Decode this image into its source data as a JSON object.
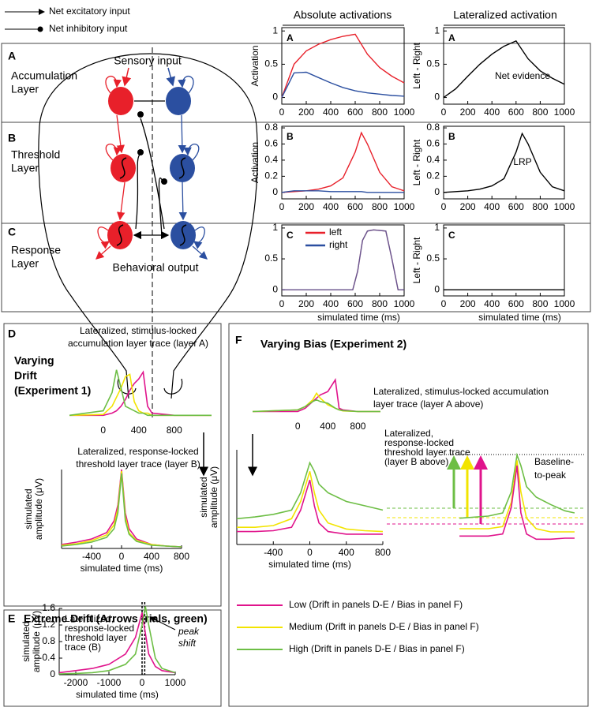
{
  "figure": {
    "legend_top": [
      "Net excitatory input",
      "Net inhibitory input"
    ],
    "column_headers": [
      "Absolute activations",
      "Lateralized activation"
    ],
    "rows": [
      {
        "letter": "A",
        "lines": [
          "Accumulation",
          "Layer"
        ]
      },
      {
        "letter": "B",
        "lines": [
          "Threshold",
          "Layer"
        ]
      },
      {
        "letter": "C",
        "lines": [
          "Response",
          "Layer"
        ]
      }
    ],
    "sensory": "Sensory input",
    "behavioral": "Behavioral output",
    "panel_d": {
      "letter": "D",
      "lines": [
        "Varying",
        "Drift",
        "(Experiment 1)"
      ]
    },
    "panel_e": {
      "letter": "E",
      "title": "Extreme Drift (Arrows trials, green)",
      "note": [
        "peak",
        "shift"
      ]
    },
    "panel_f": {
      "letter": "F",
      "title": "Varying Bias (Experiment 2)",
      "note": [
        "Baseline-",
        "to-peak"
      ]
    },
    "legend_bottom": [
      {
        "name": "Low (Drift in panels D-E / Bias in panel F)",
        "color": "#e0148c"
      },
      {
        "name": "Medium (Drift in panels D-E / Bias in panel F)",
        "color": "#f2e400"
      },
      {
        "name": "High (Drift in panels D-E / Bias in panel F)",
        "color": "#6dbe45"
      }
    ]
  },
  "chart_data": [
    {
      "type": "line",
      "frame": "box",
      "panel_label": "A",
      "ylabel": "Activation",
      "x": [
        0,
        100,
        200,
        300,
        400,
        500,
        600,
        700,
        800,
        900,
        1000
      ],
      "series": [
        {
          "color": "#e8202a",
          "values": [
            0,
            0.5,
            0.7,
            0.8,
            0.87,
            0.92,
            0.95,
            0.65,
            0.45,
            0.32,
            0.22
          ]
        },
        {
          "color": "#2b4fa0",
          "values": [
            0,
            0.37,
            0.38,
            0.3,
            0.22,
            0.15,
            0.1,
            0.07,
            0.05,
            0.03,
            0.02
          ]
        }
      ],
      "xlim": [
        0,
        1000
      ],
      "ylim": [
        -0.1,
        1.05
      ],
      "xticks": [
        0,
        200,
        400,
        600,
        800,
        1000
      ],
      "yticks": [
        0,
        0.5,
        1
      ]
    },
    {
      "type": "line",
      "frame": "box",
      "panel_label": "A",
      "ylabel": "Left - Right",
      "annotation": "Net evidence",
      "x": [
        0,
        100,
        200,
        300,
        400,
        500,
        600,
        700,
        800,
        900,
        1000
      ],
      "series": [
        {
          "color": "#000000",
          "values": [
            0,
            0.13,
            0.32,
            0.5,
            0.65,
            0.77,
            0.85,
            0.58,
            0.4,
            0.29,
            0.2
          ]
        }
      ],
      "xlim": [
        0,
        1000
      ],
      "ylim": [
        -0.1,
        1.05
      ],
      "xticks": [
        0,
        200,
        400,
        600,
        800,
        1000
      ],
      "yticks": [
        0,
        0.5,
        1
      ]
    },
    {
      "type": "line",
      "frame": "box",
      "panel_label": "B",
      "ylabel": "Activation",
      "x": [
        0,
        100,
        200,
        300,
        400,
        500,
        600,
        650,
        700,
        800,
        900,
        1000
      ],
      "series": [
        {
          "color": "#e8202a",
          "values": [
            0,
            0.01,
            0.02,
            0.04,
            0.08,
            0.18,
            0.5,
            0.74,
            0.6,
            0.25,
            0.07,
            0.02
          ]
        },
        {
          "color": "#2b4fa0",
          "values": [
            0,
            0.02,
            0.02,
            0.02,
            0.01,
            0.01,
            0.01,
            0.01,
            0,
            0,
            0,
            0
          ]
        }
      ],
      "xlim": [
        0,
        1000
      ],
      "ylim": [
        -0.08,
        0.82
      ],
      "xticks": [
        0,
        200,
        400,
        600,
        800,
        1000
      ],
      "yticks": [
        0,
        0.2,
        0.4,
        0.6,
        0.8
      ]
    },
    {
      "type": "line",
      "frame": "box",
      "panel_label": "B",
      "ylabel": "Left - Right",
      "annotation": "LRP",
      "x": [
        0,
        100,
        200,
        300,
        400,
        500,
        600,
        650,
        700,
        800,
        900,
        1000
      ],
      "series": [
        {
          "color": "#000000",
          "values": [
            0,
            0.01,
            0.02,
            0.04,
            0.08,
            0.17,
            0.5,
            0.73,
            0.6,
            0.25,
            0.07,
            0.02
          ]
        }
      ],
      "xlim": [
        0,
        1000
      ],
      "ylim": [
        -0.08,
        0.82
      ],
      "xticks": [
        0,
        200,
        400,
        600,
        800,
        1000
      ],
      "yticks": [
        0,
        0.2,
        0.4,
        0.6,
        0.8
      ]
    },
    {
      "type": "line",
      "frame": "box",
      "panel_label": "C",
      "xlabel": "simulated time (ms)",
      "legend": true,
      "x": [
        0,
        580,
        620,
        660,
        700,
        750,
        850,
        900,
        950,
        1000
      ],
      "series": [
        {
          "name": "left",
          "color": "#e8202a",
          "values": [
            0,
            0,
            0.3,
            0.8,
            0.95,
            0.97,
            0.95,
            0.5,
            0,
            0
          ]
        },
        {
          "name": "right",
          "color": "#2b4fa0",
          "values": [
            0,
            0,
            0.3,
            0.8,
            0.95,
            0.97,
            0.95,
            0.5,
            0,
            0
          ]
        }
      ],
      "xlim": [
        0,
        1000
      ],
      "ylim": [
        -0.1,
        1.05
      ],
      "xticks": [
        0,
        200,
        400,
        600,
        800,
        1000
      ],
      "yticks": [
        0,
        0.5,
        1
      ]
    },
    {
      "type": "line",
      "frame": "box",
      "panel_label": "C",
      "ylabel": "Left - Right",
      "xlabel": "simulated time (ms)",
      "x": [
        0,
        1000
      ],
      "series": [
        {
          "color": "#000000",
          "values": [
            0,
            0
          ]
        }
      ],
      "xlim": [
        0,
        1000
      ],
      "ylim": [
        -0.1,
        1.05
      ],
      "xticks": [
        0,
        200,
        400,
        600,
        800,
        1000
      ],
      "yticks": [
        0,
        0.5,
        1
      ]
    },
    {
      "type": "line",
      "frame": "none",
      "title": [
        "Lateralized, stimulus-locked",
        "accumulation layer trace (layer A)"
      ],
      "x": [
        -380,
        0,
        100,
        150,
        200,
        250,
        300,
        350,
        400,
        450,
        500,
        550,
        800,
        1220
      ],
      "series": [
        {
          "color": "#e0148c",
          "values": [
            0,
            0,
            0.05,
            0.1,
            0.2,
            0.35,
            0.55,
            0.7,
            0.8,
            0.95,
            0.2,
            0.05,
            0,
            0
          ]
        },
        {
          "color": "#f2e400",
          "values": [
            0,
            0.02,
            0.2,
            0.4,
            0.6,
            0.85,
            0.9,
            0.3,
            0.1,
            0.05,
            0.05,
            0,
            0,
            0
          ]
        },
        {
          "color": "#6dbe45",
          "values": [
            0,
            0.1,
            0.5,
            1.0,
            0.6,
            0.2,
            0.15,
            0.1,
            0.05,
            0.05,
            0,
            0,
            0,
            0
          ]
        }
      ],
      "xlim": [
        -380,
        1220
      ],
      "ylim": [
        -0.15,
        1.15
      ],
      "xticks": [
        0,
        400,
        800
      ]
    },
    {
      "type": "line",
      "frame": "lines",
      "title": [
        "Lateralized, response-locked",
        "threshold layer trace (layer B)"
      ],
      "ylabel": [
        "simulated",
        "amplitude (μV)"
      ],
      "xlabel": "simulated time (ms)",
      "x": [
        -800,
        -600,
        -400,
        -200,
        -100,
        -50,
        0,
        50,
        100,
        200,
        400,
        600,
        800
      ],
      "series": [
        {
          "color": "#e0148c",
          "values": [
            0.05,
            0.08,
            0.12,
            0.2,
            0.35,
            0.55,
            1.0,
            0.45,
            0.25,
            0.12,
            0.05,
            0.03,
            0.02
          ]
        },
        {
          "color": "#f2e400",
          "values": [
            0.04,
            0.06,
            0.1,
            0.17,
            0.3,
            0.5,
            0.98,
            0.4,
            0.2,
            0.1,
            0.05,
            0.03,
            0.02
          ]
        },
        {
          "color": "#6dbe45",
          "values": [
            0.03,
            0.05,
            0.08,
            0.14,
            0.25,
            0.45,
            0.95,
            0.35,
            0.18,
            0.09,
            0.04,
            0.03,
            0.02
          ]
        }
      ],
      "xlim": [
        -800,
        800
      ],
      "ylim": [
        0,
        1
      ],
      "xticks": [
        -400,
        0,
        400,
        800
      ]
    },
    {
      "type": "line",
      "frame": "lines",
      "title": [
        "Lateralized,",
        "response-locked",
        "threshold layer",
        "trace (B)"
      ],
      "ylabel": [
        "simulated",
        "amplitude (μV)"
      ],
      "xlabel": "simulated time (ms)",
      "x": [
        -2500,
        -2000,
        -1500,
        -1000,
        -500,
        -200,
        0,
        100,
        200,
        400,
        600,
        1000
      ],
      "series": [
        {
          "color": "#e0148c",
          "values": [
            0.05,
            0.1,
            0.15,
            0.25,
            0.5,
            0.9,
            1.5,
            1.0,
            0.5,
            0.2,
            0.1,
            0.05
          ]
        },
        {
          "color": "#6dbe45",
          "values": [
            0.02,
            0.03,
            0.05,
            0.1,
            0.25,
            0.5,
            1.2,
            1.65,
            1.2,
            0.4,
            0.15,
            0.05
          ]
        }
      ],
      "markers": [
        0,
        80
      ],
      "xlim": [
        -2500,
        1000
      ],
      "ylim": [
        0,
        1.6
      ],
      "xticks": [
        -2000,
        -1000,
        0,
        1000
      ],
      "yticks": [
        0,
        0.4,
        0.8,
        1.2,
        1.6
      ]
    },
    {
      "type": "line",
      "frame": "none",
      "title": [
        "Lateralized, stimulus-locked accumulation",
        "layer trace (layer A above)"
      ],
      "x": [
        -600,
        0,
        100,
        200,
        250,
        300,
        400,
        500,
        550,
        600,
        800,
        1100
      ],
      "series": [
        {
          "color": "#e0148c",
          "values": [
            0,
            0,
            0.1,
            0.3,
            0.4,
            0.5,
            0.6,
            0.95,
            0.1,
            0.05,
            0,
            0
          ]
        },
        {
          "color": "#f2e400",
          "values": [
            0,
            0.05,
            0.15,
            0.35,
            0.55,
            0.4,
            0.2,
            0.1,
            0.05,
            0.02,
            0,
            0
          ]
        },
        {
          "color": "#6dbe45",
          "values": [
            0,
            0.05,
            0.15,
            0.3,
            0.35,
            0.3,
            0.25,
            0.1,
            0.05,
            0.03,
            0,
            0
          ]
        }
      ],
      "xlim": [
        -600,
        1100
      ],
      "ylim": [
        -0.2,
        1.1
      ],
      "xticks": [
        0,
        400,
        800
      ]
    },
    {
      "type": "line",
      "frame": "lines",
      "title": [
        "Lateralized,",
        "response-locked",
        "threshold layer trace",
        "(layer B above)"
      ],
      "ylabel": [
        "simulated",
        "amplitude (μV)"
      ],
      "xlabel": "simulated time (ms)",
      "x": [
        -800,
        -600,
        -400,
        -200,
        -100,
        0,
        50,
        100,
        200,
        400,
        600,
        800
      ],
      "series": [
        {
          "color": "#6dbe45",
          "values": [
            0.2,
            0.22,
            0.25,
            0.3,
            0.5,
            0.85,
            0.75,
            0.6,
            0.5,
            0.4,
            0.35,
            0.3
          ]
        },
        {
          "color": "#f2e400",
          "values": [
            0.1,
            0.1,
            0.12,
            0.2,
            0.4,
            0.75,
            0.5,
            0.3,
            0.15,
            0.08,
            0.06,
            0.05
          ]
        },
        {
          "color": "#e0148c",
          "values": [
            0.05,
            0.05,
            0.06,
            0.1,
            0.3,
            0.65,
            0.35,
            0.15,
            0.05,
            0.02,
            0.02,
            0.02
          ]
        }
      ],
      "xlim": [
        -800,
        800
      ],
      "ylim": [
        -0.1,
        1
      ],
      "xticks": [
        -400,
        0,
        400,
        800
      ]
    },
    {
      "type": "line",
      "frame": "none",
      "x": [
        -600,
        -300,
        -150,
        -60,
        0,
        40,
        100,
        200,
        350,
        500,
        600
      ],
      "series": [
        {
          "color": "#6dbe45",
          "values": [
            0.25,
            0.27,
            0.3,
            0.5,
            0.85,
            0.75,
            0.55,
            0.45,
            0.38,
            0.32,
            0.3
          ]
        },
        {
          "color": "#f2e400",
          "values": [
            0.15,
            0.15,
            0.17,
            0.4,
            0.8,
            0.5,
            0.25,
            0.15,
            0.12,
            0.12,
            0.12
          ]
        },
        {
          "color": "#e0148c",
          "values": [
            0.08,
            0.08,
            0.1,
            0.35,
            0.75,
            0.3,
            0.1,
            0.05,
            0.05,
            0.06,
            0.06
          ]
        }
      ],
      "xlim": [
        -700,
        700
      ],
      "ylim": [
        0,
        0.9
      ]
    }
  ]
}
